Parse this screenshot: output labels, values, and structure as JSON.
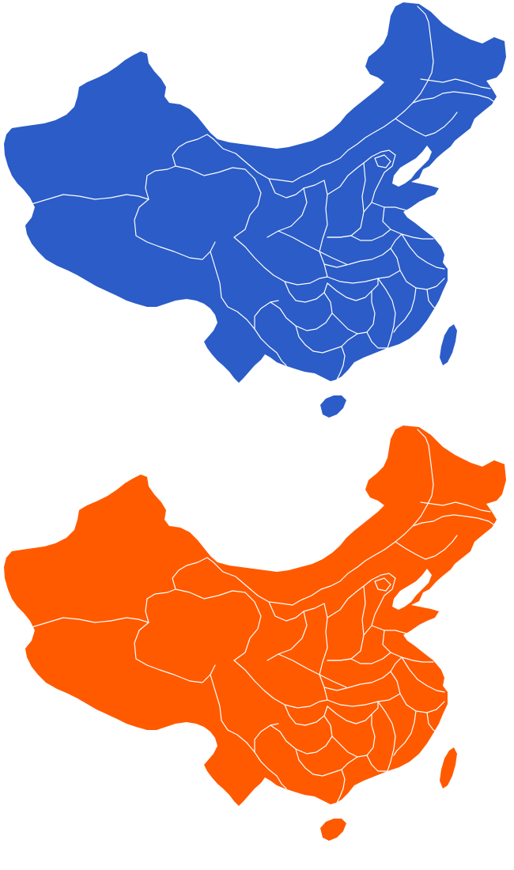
{
  "maps": [
    {
      "name": "china-map-blue",
      "fill": "#2b5cc8",
      "border_color": "#ffffff"
    },
    {
      "name": "china-map-orange",
      "fill": "#ff5a00",
      "border_color": "#ffffff"
    }
  ],
  "background": "#ffffff"
}
